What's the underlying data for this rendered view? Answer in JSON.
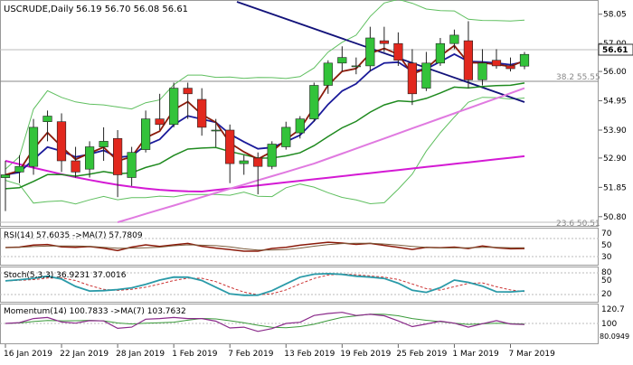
{
  "main": {
    "title": "USCRUDE,Daily",
    "ohlc": "56.19 56.70 56.08 56.61",
    "price_scale": [
      "58.05",
      "57.00",
      "56.00",
      "54.95",
      "53.90",
      "52.90",
      "51.85",
      "50.80"
    ],
    "current_price": "56.61",
    "fib_label_top": "38.2 55.55",
    "fib_label_bottom": "23.6 50.51"
  },
  "rsi": {
    "label": "RSI(14) 57.6035  ->MA(7) 57.7809",
    "scale": [
      "70",
      "50",
      "30"
    ]
  },
  "stoch": {
    "label": "Stoch(5,3,3) 36.9231 37.0016",
    "scale": [
      "80",
      "50",
      "20"
    ]
  },
  "momentum": {
    "label": "Momentum(14) 100.7833  ->MA(7) 103.7632",
    "scale": [
      "120.7",
      "100",
      "80.0949"
    ]
  },
  "x_axis": [
    "16 Jan 2019",
    "22 Jan 2019",
    "28 Jan 2019",
    "1 Feb 2019",
    "7 Feb 2019",
    "13 Feb 2019",
    "19 Feb 2019",
    "25 Feb 2019",
    "1 Mar 2019",
    "7 Mar 2019"
  ],
  "colors": {
    "bull": "#33c33a",
    "bear": "#e2281e",
    "ma_blue": "#1a1a9a",
    "ma_darkred": "#8b1a0a",
    "ma_green": "#1f8a1f",
    "ma_magenta": "#d41ad4",
    "bollinger": "#5fbf5f",
    "trendline": "#12127a",
    "violet": "#e07ae0",
    "rsi_line": "#8b1a0a",
    "stoch_main": "#2a9aa8",
    "momentum_line": "#8a2a8a",
    "momentum_ma": "#3a9a3a"
  },
  "chart_data": {
    "type": "candlestick",
    "symbol": "USCRUDE",
    "timeframe": "Daily",
    "candles": [
      {
        "o": 52.2,
        "h": 52.8,
        "l": 51.0,
        "c": 52.3
      },
      {
        "o": 52.4,
        "h": 53.0,
        "l": 52.0,
        "c": 52.6
      },
      {
        "o": 52.6,
        "h": 54.3,
        "l": 52.3,
        "c": 54.0
      },
      {
        "o": 54.2,
        "h": 54.6,
        "l": 53.5,
        "c": 54.4
      },
      {
        "o": 54.2,
        "h": 54.5,
        "l": 52.4,
        "c": 52.8
      },
      {
        "o": 52.8,
        "h": 53.3,
        "l": 52.2,
        "c": 52.4
      },
      {
        "o": 52.5,
        "h": 53.5,
        "l": 52.2,
        "c": 53.3
      },
      {
        "o": 53.3,
        "h": 54.0,
        "l": 52.8,
        "c": 53.5
      },
      {
        "o": 53.6,
        "h": 53.9,
        "l": 51.5,
        "c": 52.3
      },
      {
        "o": 52.2,
        "h": 53.3,
        "l": 51.9,
        "c": 53.1
      },
      {
        "o": 53.2,
        "h": 54.6,
        "l": 53.1,
        "c": 54.3
      },
      {
        "o": 54.3,
        "h": 55.2,
        "l": 53.9,
        "c": 54.1
      },
      {
        "o": 54.1,
        "h": 55.6,
        "l": 54.0,
        "c": 55.4
      },
      {
        "o": 55.4,
        "h": 55.6,
        "l": 54.3,
        "c": 55.2
      },
      {
        "o": 55.0,
        "h": 55.4,
        "l": 53.7,
        "c": 54.0
      },
      {
        "o": 53.9,
        "h": 54.3,
        "l": 53.3,
        "c": 53.9
      },
      {
        "o": 53.9,
        "h": 54.1,
        "l": 52.0,
        "c": 52.7
      },
      {
        "o": 52.7,
        "h": 53.0,
        "l": 52.3,
        "c": 52.8
      },
      {
        "o": 52.9,
        "h": 53.1,
        "l": 51.6,
        "c": 52.6
      },
      {
        "o": 52.6,
        "h": 53.5,
        "l": 52.5,
        "c": 53.4
      },
      {
        "o": 53.3,
        "h": 54.2,
        "l": 53.2,
        "c": 54.0
      },
      {
        "o": 53.8,
        "h": 54.4,
        "l": 53.6,
        "c": 54.3
      },
      {
        "o": 54.3,
        "h": 55.6,
        "l": 54.2,
        "c": 55.5
      },
      {
        "o": 55.5,
        "h": 56.4,
        "l": 55.2,
        "c": 56.3
      },
      {
        "o": 56.3,
        "h": 56.9,
        "l": 56.0,
        "c": 56.5
      },
      {
        "o": 56.2,
        "h": 56.5,
        "l": 55.9,
        "c": 56.2
      },
      {
        "o": 56.2,
        "h": 57.6,
        "l": 56.0,
        "c": 57.2
      },
      {
        "o": 57.1,
        "h": 57.6,
        "l": 56.7,
        "c": 57.0
      },
      {
        "o": 57.0,
        "h": 57.4,
        "l": 56.2,
        "c": 56.4
      },
      {
        "o": 56.3,
        "h": 56.8,
        "l": 54.8,
        "c": 55.2
      },
      {
        "o": 55.4,
        "h": 56.7,
        "l": 55.3,
        "c": 56.3
      },
      {
        "o": 56.3,
        "h": 57.2,
        "l": 56.2,
        "c": 57.0
      },
      {
        "o": 57.0,
        "h": 57.5,
        "l": 56.8,
        "c": 57.3
      },
      {
        "o": 57.1,
        "h": 57.8,
        "l": 55.4,
        "c": 55.7
      },
      {
        "o": 55.7,
        "h": 56.8,
        "l": 55.5,
        "c": 56.3
      },
      {
        "o": 56.4,
        "h": 56.8,
        "l": 56.1,
        "c": 56.2
      },
      {
        "o": 56.2,
        "h": 56.5,
        "l": 56.0,
        "c": 56.1
      },
      {
        "o": 56.19,
        "h": 56.7,
        "l": 56.08,
        "c": 56.61
      }
    ],
    "ylim": [
      50.6,
      58.3
    ]
  }
}
